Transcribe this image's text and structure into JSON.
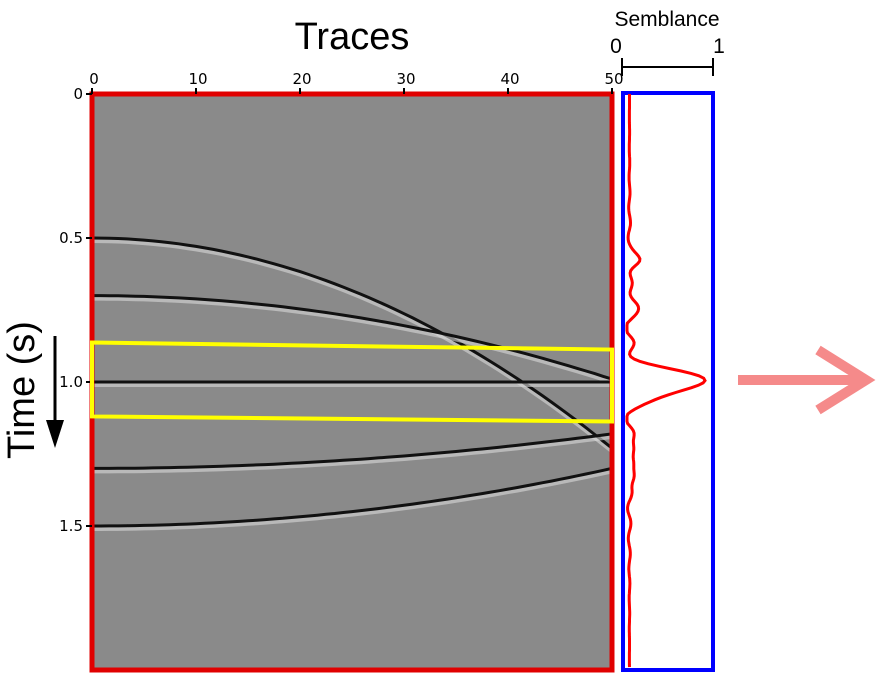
{
  "gather": {
    "x_title": "Traces",
    "y_title": "Time (s)",
    "x_ticks": [
      "0",
      "10",
      "20",
      "30",
      "40",
      "50"
    ],
    "y_ticks": [
      "0",
      "0.5",
      "1.0",
      "1.5"
    ],
    "x_range": [
      0,
      50
    ],
    "y_range": [
      0,
      2.0
    ],
    "frame_color": "#e00000",
    "background_color": "#8a8a8a",
    "window_color": "#ffff00",
    "window_times": [
      0.87,
      1.13
    ],
    "events": [
      {
        "t0": 0.5,
        "t_end": 1.23
      },
      {
        "t0": 0.7,
        "t_end": 0.99
      },
      {
        "t0": 1.0,
        "t_end": 1.0
      },
      {
        "t0": 1.3,
        "t_end": 1.18
      },
      {
        "t0": 1.5,
        "t_end": 1.3
      }
    ]
  },
  "semblance": {
    "label": "Semblance",
    "scale_min": "0",
    "scale_max": "1",
    "frame_color": "#0000ff",
    "curve_color": "#ff0000"
  },
  "arrow": {
    "color": "#f58a8a",
    "icon": "right-arrow-icon"
  }
}
